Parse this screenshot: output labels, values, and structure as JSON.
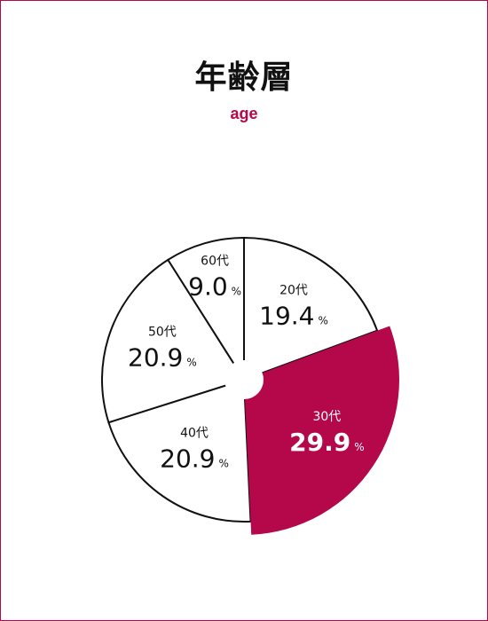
{
  "chart_data": {
    "type": "pie",
    "title": "年齢層",
    "subtitle": "age",
    "unit": "%",
    "slices": [
      {
        "label": "20代",
        "value": 19.4,
        "highlight": false
      },
      {
        "label": "30代",
        "value": 29.9,
        "highlight": true
      },
      {
        "label": "40代",
        "value": 20.9,
        "highlight": false
      },
      {
        "label": "50代",
        "value": 20.9,
        "highlight": false
      },
      {
        "label": "60代",
        "value": 9.0,
        "highlight": false
      }
    ]
  },
  "colors": {
    "accent": "#b5084a",
    "slice_fill": "#ffffff",
    "stroke": "#111111",
    "text": "#111111",
    "highlight_text": "#ffffff"
  }
}
